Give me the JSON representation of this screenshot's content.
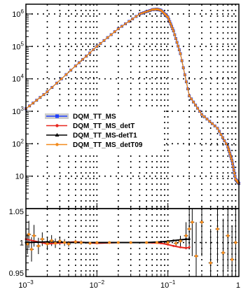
{
  "chart_data": [
    {
      "type": "line",
      "panel": "main",
      "xscale": "log",
      "yscale": "log",
      "xlim": [
        0.001,
        1
      ],
      "ylim": [
        1,
        2000000
      ],
      "grid": true,
      "legend_placement": "center-left",
      "y_tick_labels": [
        {
          "value": 1000000,
          "base": "10",
          "exp": "6"
        },
        {
          "value": 100000,
          "base": "10",
          "exp": "5"
        },
        {
          "value": 10000,
          "base": "10",
          "exp": "4"
        },
        {
          "value": 1000,
          "base": "10",
          "exp": "3"
        },
        {
          "value": 100,
          "base": "10",
          "exp": "2"
        },
        {
          "value": 10,
          "base": "10",
          "exp": ""
        }
      ],
      "series": [
        {
          "name": "DQM_TT_MS",
          "color": "#1f3fff",
          "marker": "square",
          "x": [
            0.001,
            0.002,
            0.005,
            0.01,
            0.02,
            0.04,
            0.06,
            0.07,
            0.08,
            0.1,
            0.12,
            0.15,
            0.2,
            0.3,
            0.5,
            0.7,
            0.8,
            0.9,
            1.0
          ],
          "y": [
            1200,
            4000,
            25000,
            100000,
            350000,
            1000000,
            1350000,
            1400000,
            1300000,
            800000,
            300000,
            60000,
            3000,
            800,
            300,
            80,
            30,
            8,
            6
          ]
        },
        {
          "name": "DQM_TT_MS_detT",
          "color": "#e8261e",
          "marker": "circle",
          "x": [
            0.001,
            0.002,
            0.005,
            0.01,
            0.02,
            0.04,
            0.06,
            0.07,
            0.08,
            0.1,
            0.12,
            0.15,
            0.2,
            0.3,
            0.5,
            0.7,
            0.8,
            0.9,
            1.0
          ],
          "y": [
            1200,
            4000,
            25000,
            100000,
            350000,
            1000000,
            1350000,
            1400000,
            1300000,
            800000,
            300000,
            60000,
            3000,
            800,
            300,
            80,
            30,
            8,
            6
          ]
        },
        {
          "name": "DQM_TT_MS-detT1",
          "color": "#000000",
          "marker": "triangle",
          "x": [
            0.001,
            0.002,
            0.005,
            0.01,
            0.02,
            0.04,
            0.06,
            0.07,
            0.08,
            0.1,
            0.12,
            0.15,
            0.2,
            0.3,
            0.5,
            0.7,
            0.8,
            0.9,
            1.0
          ],
          "y": [
            1200,
            4000,
            25000,
            100000,
            350000,
            1000000,
            1350000,
            1400000,
            1300000,
            800000,
            300000,
            60000,
            3000,
            800,
            300,
            80,
            30,
            8,
            6
          ]
        },
        {
          "name": "DQM_TT_MS_detT09",
          "color": "#f28a1c",
          "marker": "circle",
          "x": [
            0.001,
            0.002,
            0.005,
            0.01,
            0.02,
            0.04,
            0.06,
            0.07,
            0.08,
            0.1,
            0.12,
            0.15,
            0.2,
            0.3,
            0.5,
            0.7,
            0.8,
            0.9,
            1.0
          ],
          "y": [
            1200,
            4000,
            25000,
            100000,
            350000,
            1000000,
            1350000,
            1400000,
            1300000,
            800000,
            300000,
            60000,
            3000,
            800,
            300,
            80,
            30,
            8,
            6
          ]
        }
      ]
    },
    {
      "type": "scatter",
      "panel": "ratio",
      "xscale": "log",
      "xlim": [
        0.001,
        1
      ],
      "ylim": [
        0.95,
        1.05
      ],
      "grid": true,
      "x_tick_labels": [
        {
          "value": 0.001,
          "base": "10",
          "exp": "−3"
        },
        {
          "value": 0.01,
          "base": "10",
          "exp": "−2"
        },
        {
          "value": 0.1,
          "base": "10",
          "exp": "−1"
        },
        {
          "value": 1,
          "base": "1",
          "exp": ""
        }
      ],
      "y_tick_labels": [
        {
          "value": 1.05,
          "text": "1.05"
        },
        {
          "value": 1.0,
          "text": "1"
        },
        {
          "value": 0.95,
          "text": "0.95"
        }
      ],
      "series": [
        {
          "name": "DQM_TT_MS_detT",
          "color": "#e8261e",
          "x": [
            0.001,
            0.002,
            0.005,
            0.01,
            0.02,
            0.05,
            0.08,
            0.1,
            0.12,
            0.15,
            0.18,
            0.2
          ],
          "y": [
            1.005,
            0.998,
            1.001,
            0.999,
            1.0,
            1.0,
            0.999,
            0.997,
            0.995,
            0.993,
            0.992,
            0.993
          ]
        },
        {
          "name": "DQM_TT_MS-detT1",
          "color": "#000000",
          "x": [
            0.001,
            0.002,
            0.005,
            0.01,
            0.02,
            0.05,
            0.08,
            0.1,
            0.12,
            0.15,
            0.18,
            0.2
          ],
          "y": [
            1.0,
            1.001,
            1.0,
            1.0,
            1.0,
            1.0,
            1.001,
            1.002,
            1.003,
            1.004,
            1.005,
            1.005
          ]
        },
        {
          "name": "DQM_TT_MS_detT09",
          "color": "#f28a1c",
          "x": [
            0.00105,
            0.0011,
            0.0012,
            0.0013,
            0.0015,
            0.0017,
            0.002,
            0.0023,
            0.0026,
            0.003,
            0.0035,
            0.004,
            0.005,
            0.006,
            0.008,
            0.01,
            0.015,
            0.02,
            0.03,
            0.05,
            0.07,
            0.1,
            0.13,
            0.15,
            0.18,
            0.2,
            0.22,
            0.25,
            0.3,
            0.4,
            0.5,
            0.6,
            0.7,
            0.8,
            0.9
          ],
          "y": [
            0.998,
            1.012,
            0.99,
            1.01,
            0.995,
            1.005,
            0.998,
            1.003,
            0.999,
            1.002,
            1.0,
            0.998,
            1.001,
            1.0,
            0.999,
            1.0,
            1.0,
            1.0,
            1.0,
            1.0,
            1.0,
            1.0,
            0.999,
            1.002,
            1.01,
            1.02,
            1.03,
            0.98,
            1.03,
            0.97,
            1.02,
            0.985,
            1.01,
            0.975,
            1.0
          ],
          "error": [
            0.015,
            0.02,
            0.018,
            0.016,
            0.012,
            0.01,
            0.009,
            0.008,
            0.007,
            0.006,
            0.005,
            0.004,
            0.003,
            0.003,
            0.002,
            0.002,
            0.002,
            0.001,
            0.001,
            0.001,
            0.001,
            0.002,
            0.004,
            0.008,
            0.02,
            0.03,
            0.05,
            0.05,
            0.05,
            0.05,
            0.05,
            0.05,
            0.05,
            0.05,
            0.05
          ]
        }
      ]
    }
  ],
  "legend": {
    "entries": [
      {
        "label": "DQM_TT_MS",
        "color": "#1f3fff",
        "marker": "square"
      },
      {
        "label": "DQM_TT_MS_detT",
        "color": "#e8261e",
        "marker": "circle"
      },
      {
        "label": "DQM_TT_MS-detT1",
        "color": "#000000",
        "marker": "triangle"
      },
      {
        "label": "DQM_TT_MS_detT09",
        "color": "#f28a1c",
        "marker": "circle"
      }
    ]
  }
}
